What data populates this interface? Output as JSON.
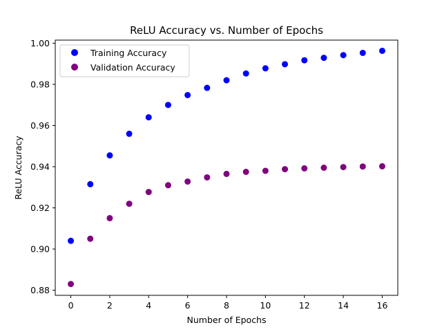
{
  "chart_data": {
    "type": "scatter",
    "title": "ReLU Accuracy vs. Number of Epochs",
    "xlabel": "Number of Epochs",
    "ylabel": "ReLU Accuracy",
    "xlim": [
      -0.8,
      16.8
    ],
    "ylim": [
      0.8775,
      1.0015
    ],
    "xticks": [
      0,
      2,
      4,
      6,
      8,
      10,
      12,
      14,
      16
    ],
    "yticks": [
      0.88,
      0.9,
      0.92,
      0.94,
      0.96,
      0.98,
      1.0
    ],
    "grid": false,
    "legend_position": "upper-left",
    "x": [
      0,
      1,
      2,
      3,
      4,
      5,
      6,
      7,
      8,
      9,
      10,
      11,
      12,
      13,
      14,
      15,
      16
    ],
    "series": [
      {
        "name": "Training Accuracy",
        "color": "#0000ff",
        "values": [
          0.904,
          0.9315,
          0.9455,
          0.956,
          0.964,
          0.97,
          0.9748,
          0.9783,
          0.982,
          0.9853,
          0.9878,
          0.9898,
          0.9917,
          0.9929,
          0.9942,
          0.9953,
          0.9963
        ]
      },
      {
        "name": "Validation Accuracy",
        "color": "#800080",
        "values": [
          0.883,
          0.905,
          0.915,
          0.922,
          0.9277,
          0.931,
          0.9328,
          0.9348,
          0.9365,
          0.9375,
          0.938,
          0.9388,
          0.9392,
          0.9395,
          0.9398,
          0.9401,
          0.9402
        ]
      }
    ]
  }
}
